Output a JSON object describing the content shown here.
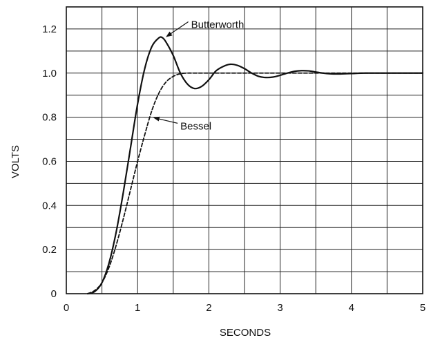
{
  "chart_data": {
    "type": "line",
    "xlabel": "SECONDS",
    "ylabel": "VOLTS",
    "xlim": [
      0,
      5
    ],
    "ylim": [
      0,
      1.3
    ],
    "x_ticks": [
      "0",
      "1",
      "2",
      "3",
      "4",
      "5"
    ],
    "y_ticks": [
      "0",
      "0.2",
      "0.4",
      "0.6",
      "0.8",
      "1.0",
      "1.2"
    ],
    "x_tick_values": [
      0,
      1,
      2,
      3,
      4,
      5
    ],
    "y_tick_values": [
      0,
      0.2,
      0.4,
      0.6,
      0.8,
      1.0,
      1.2
    ],
    "x_grid": [
      0,
      0.5,
      1,
      1.5,
      2,
      2.5,
      3,
      3.5,
      4,
      4.5,
      5
    ],
    "y_grid": [
      0,
      0.1,
      0.2,
      0.3,
      0.4,
      0.5,
      0.6,
      0.7,
      0.8,
      0.9,
      1.0,
      1.1,
      1.2,
      1.3
    ],
    "grid": true,
    "series": [
      {
        "name": "Butterworth",
        "style": "solid",
        "color": "#111111",
        "x": [
          0.3,
          0.4,
          0.5,
          0.6,
          0.7,
          0.8,
          0.9,
          1.0,
          1.1,
          1.2,
          1.3,
          1.35,
          1.4,
          1.5,
          1.6,
          1.7,
          1.8,
          1.9,
          2.0,
          2.1,
          2.2,
          2.3,
          2.4,
          2.5,
          2.6,
          2.7,
          2.8,
          2.9,
          3.0,
          3.1,
          3.2,
          3.3,
          3.4,
          3.5,
          3.6,
          3.7,
          3.8,
          3.9,
          4.0,
          4.2,
          4.5,
          5.0
        ],
        "y": [
          0.0,
          0.01,
          0.05,
          0.14,
          0.28,
          0.46,
          0.66,
          0.86,
          1.02,
          1.12,
          1.16,
          1.16,
          1.14,
          1.08,
          1.0,
          0.95,
          0.93,
          0.94,
          0.97,
          1.01,
          1.03,
          1.04,
          1.035,
          1.02,
          1.0,
          0.985,
          0.98,
          0.982,
          0.99,
          1.0,
          1.008,
          1.011,
          1.01,
          1.005,
          1.0,
          0.997,
          0.996,
          0.997,
          0.998,
          1.0,
          1.0,
          1.0
        ]
      },
      {
        "name": "Bessel",
        "style": "dashed",
        "color": "#111111",
        "x": [
          0.3,
          0.4,
          0.5,
          0.6,
          0.7,
          0.8,
          0.9,
          1.0,
          1.1,
          1.2,
          1.3,
          1.4,
          1.5,
          1.6,
          1.7,
          1.8,
          2.0,
          2.5,
          3.0,
          4.0,
          5.0
        ],
        "y": [
          0.0,
          0.015,
          0.05,
          0.12,
          0.22,
          0.34,
          0.47,
          0.6,
          0.72,
          0.83,
          0.91,
          0.96,
          0.985,
          0.997,
          1.0,
          1.0,
          1.0,
          1.0,
          1.0,
          1.0,
          1.0
        ]
      }
    ],
    "annotations": [
      {
        "text": "Butterworth",
        "series": "Butterworth",
        "at_x": 1.38,
        "at_y": 1.16,
        "label_x": 1.75,
        "label_y": 1.22
      },
      {
        "text": "Bessel",
        "series": "Bessel",
        "at_x": 1.2,
        "at_y": 0.8,
        "label_x": 1.6,
        "label_y": 0.76
      }
    ]
  }
}
